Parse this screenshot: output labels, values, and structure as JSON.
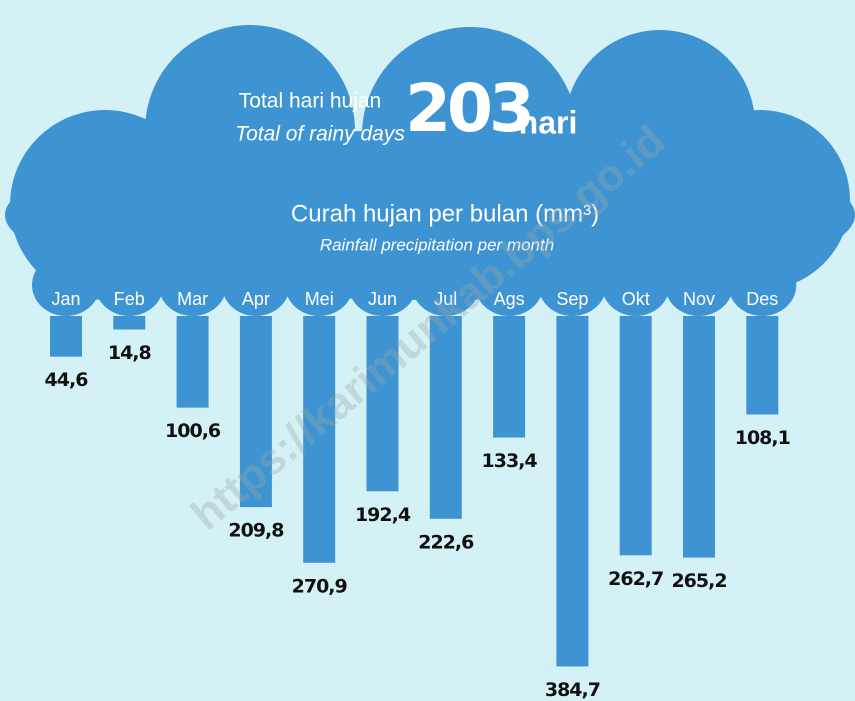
{
  "header": {
    "label": "Total hari hujan",
    "label_en": "Total of rainy days",
    "value": "203",
    "unit": "hari"
  },
  "watermark": "https://karimunkab.bps.go.id",
  "chart_data": {
    "type": "bar",
    "title": "Curah hujan per bulan (mm³)",
    "subtitle": "Rainfall precipitation per month",
    "categories": [
      "Jan",
      "Feb",
      "Mar",
      "Apr",
      "Mei",
      "Jun",
      "Jul",
      "Ags",
      "Sep",
      "Okt",
      "Nov",
      "Des"
    ],
    "values": [
      44.6,
      14.8,
      100.6,
      209.8,
      270.9,
      192.4,
      222.6,
      133.4,
      384.7,
      262.7,
      265.2,
      108.1
    ],
    "value_labels": [
      "44,6",
      "14,8",
      "100,6",
      "209,8",
      "270,9",
      "192,4",
      "222,6",
      "133,4",
      "384,7",
      "262,7",
      "265,2",
      "108,1"
    ],
    "color": "#3e93d2"
  }
}
